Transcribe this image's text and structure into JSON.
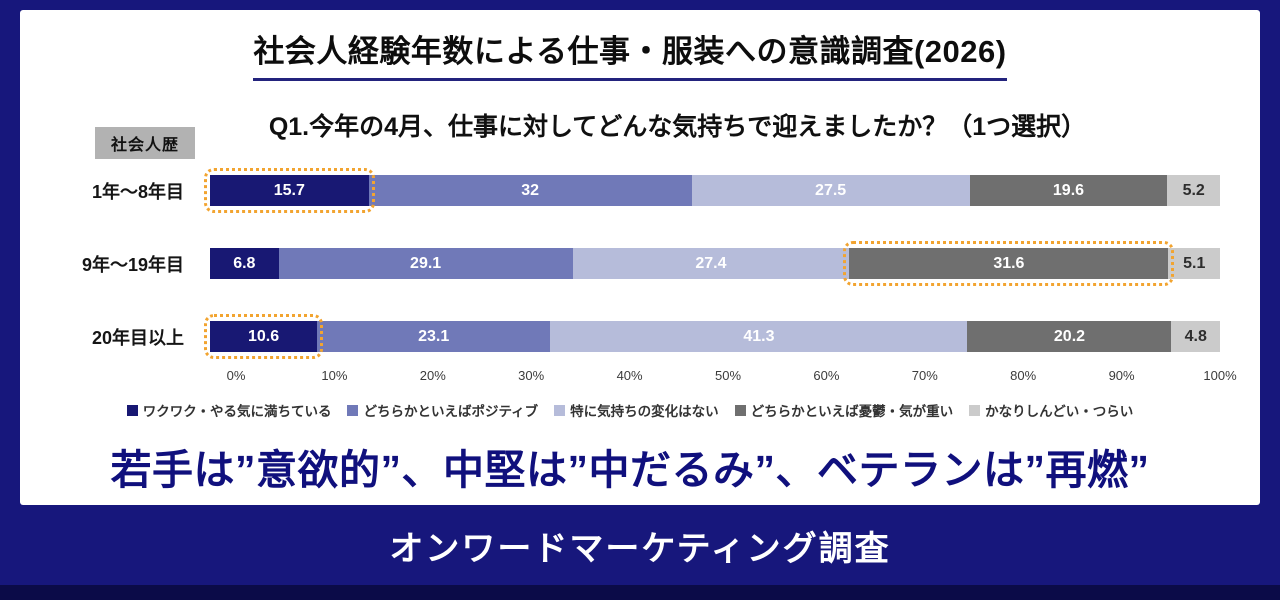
{
  "page": {
    "title": "社会人経験年数による仕事・服装への意識調査(2026)",
    "question": "Q1.今年の4月、仕事に対してどんな気持ちで迎えましたか？（1つ選択）",
    "row_header_badge": "社会人歴",
    "tagline": "若手は”意欲的”、中堅は”中だるみ”、ベテランは”再燃”",
    "footer": "オンワードマーケティング調査"
  },
  "colors": {
    "background_navy": "#17177c",
    "highlight_orange": "#f2a430",
    "tagline_navy": "#10107d"
  },
  "chart_data": {
    "type": "bar",
    "stacked": true,
    "orientation": "horizontal",
    "unit": "%",
    "xlim": [
      0,
      100
    ],
    "categories": [
      "1年〜8年目",
      "9年〜19年目",
      "20年目以上"
    ],
    "series": [
      {
        "name": "ワクワク・やる気に満ちている",
        "color": "#181873",
        "label_color": "#ffffff",
        "values": [
          15.7,
          6.8,
          10.6
        ]
      },
      {
        "name": "どちらかといえばポジティブ",
        "color": "#7079b8",
        "label_color": "#ffffff",
        "values": [
          32,
          29.1,
          23.1
        ]
      },
      {
        "name": "特に気持ちの変化はない",
        "color": "#b6bcda",
        "label_color": "#ffffff",
        "values": [
          27.5,
          27.4,
          41.3
        ]
      },
      {
        "name": "どちらかといえば憂鬱・気が重い",
        "color": "#6f6f6f",
        "label_color": "#ffffff",
        "values": [
          19.6,
          31.6,
          20.2
        ]
      },
      {
        "name": "かなりしんどい・つらい",
        "color": "#cbcbcb",
        "label_color": "#2d2d2d",
        "values": [
          5.2,
          5.1,
          4.8
        ]
      }
    ],
    "highlighted_segments": [
      [
        0,
        0
      ],
      [
        1,
        3
      ],
      [
        2,
        0
      ]
    ],
    "x_ticks": [
      "0%",
      "10%",
      "20%",
      "30%",
      "40%",
      "50%",
      "60%",
      "70%",
      "80%",
      "90%",
      "100%"
    ],
    "legend_position": "bottom",
    "grid": false
  }
}
